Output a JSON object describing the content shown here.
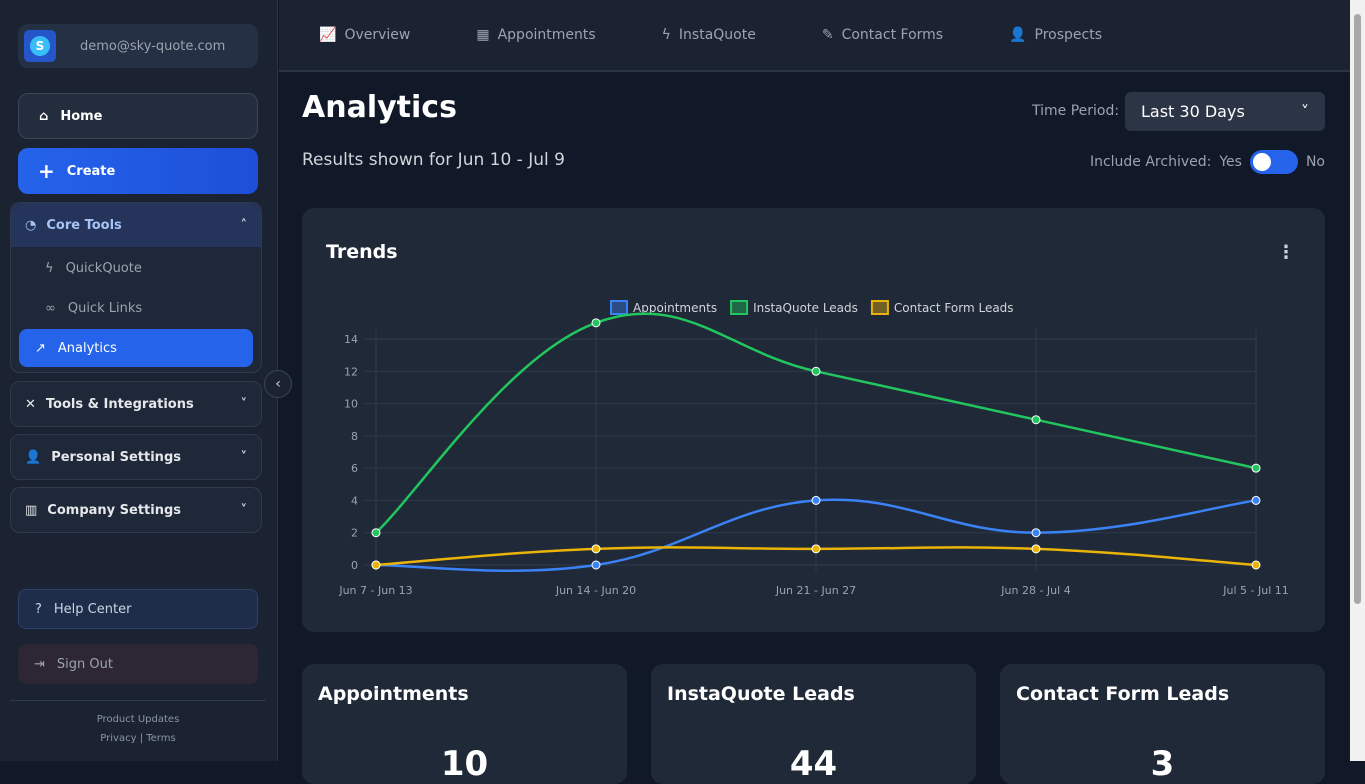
{
  "account": {
    "email": "demo@sky-quote.com",
    "logo_letter": "S"
  },
  "sidebar": {
    "home": "Home",
    "create": "Create",
    "core": {
      "label": "Core Tools",
      "items": [
        {
          "label": "QuickQuote",
          "icon": "bolt-icon"
        },
        {
          "label": "Quick Links",
          "icon": "link-icon"
        },
        {
          "label": "Analytics",
          "icon": "chart-line-icon"
        }
      ]
    },
    "groups": [
      {
        "label": "Tools & Integrations",
        "icon": "tools-icon"
      },
      {
        "label": "Personal Settings",
        "icon": "user-gear-icon"
      },
      {
        "label": "Company Settings",
        "icon": "building-icon"
      }
    ],
    "help": "Help Center",
    "signout": "Sign Out",
    "product_updates": "Product Updates",
    "privacy": "Privacy",
    "sep": "|",
    "terms": "Terms"
  },
  "topnav": [
    {
      "label": "Overview",
      "icon": "📈"
    },
    {
      "label": "Appointments",
      "icon": "▦"
    },
    {
      "label": "InstaQuote",
      "icon": "ϟ"
    },
    {
      "label": "Contact Forms",
      "icon": "✎"
    },
    {
      "label": "Prospects",
      "icon": "👤"
    }
  ],
  "page": {
    "title": "Analytics",
    "results": "Results shown for Jun 10 - Jul 9",
    "time_period_label": "Time Period:",
    "time_period": "Last 30 Days",
    "include_archived": "Include Archived:",
    "yes": "Yes",
    "no": "No",
    "archived_on": true
  },
  "chart_data": {
    "type": "line",
    "title": "Trends",
    "categories": [
      "Jun 7 - Jun 13",
      "Jun 14 - Jun 20",
      "Jun 21 - Jun 27",
      "Jun 28 - Jul 4",
      "Jul 5 - Jul 11"
    ],
    "yticks": [
      0,
      2,
      4,
      6,
      8,
      10,
      12,
      14
    ],
    "ylim": [
      0,
      15
    ],
    "legend": "top",
    "grid": true,
    "series": [
      {
        "name": "Appointments",
        "color": "#3b82f6",
        "values": [
          0,
          0,
          4,
          2,
          4
        ]
      },
      {
        "name": "InstaQuote Leads",
        "color": "#22c55e",
        "values": [
          2,
          15,
          12,
          9,
          6
        ]
      },
      {
        "name": "Contact Form Leads",
        "color": "#eab308",
        "values": [
          0,
          1,
          1,
          1,
          0
        ]
      }
    ]
  },
  "stats": [
    {
      "label": "Appointments",
      "value": "10"
    },
    {
      "label": "InstaQuote Leads",
      "value": "44"
    },
    {
      "label": "Contact Form Leads",
      "value": "3"
    }
  ]
}
